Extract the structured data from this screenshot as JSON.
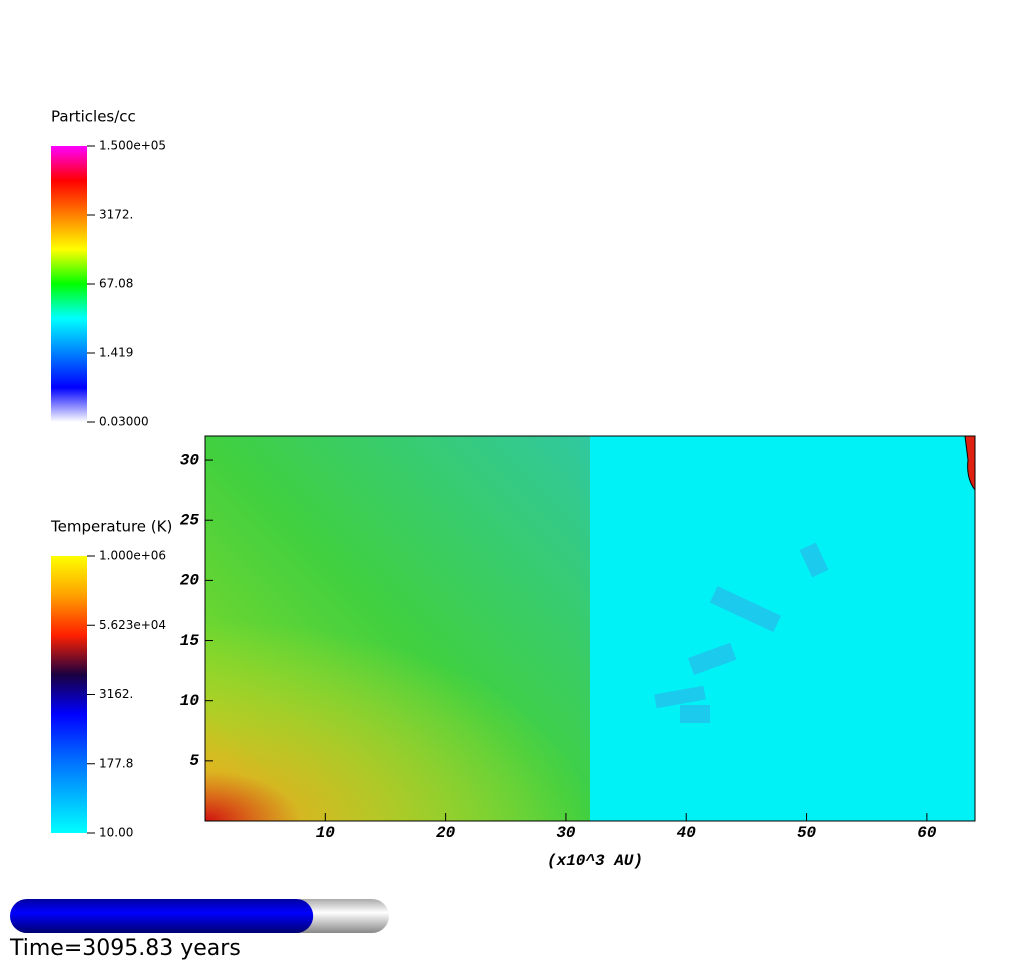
{
  "chart_data": {
    "type": "heatmap",
    "xlabel": "(x10^3 AU)",
    "xlim": [
      0,
      64
    ],
    "xticks": [
      10,
      20,
      30,
      40,
      50,
      60
    ],
    "ylim": [
      0,
      32
    ],
    "yticks": [
      5,
      10,
      15,
      20,
      25,
      30
    ],
    "colorbars": [
      {
        "title": "Particles/cc",
        "log": true,
        "lim": [
          0.03,
          150000
        ],
        "ticks": [
          {
            "value": 150000,
            "label": "1.500e+05"
          },
          {
            "value": 3172,
            "label": "3172."
          },
          67.08,
          1.419,
          {
            "value": 0.03,
            "label": "0.03000"
          }
        ],
        "colors": [
          "#ff00ff",
          "#ff0000",
          "#ff8000",
          "#ffff00",
          "#00ff00",
          "#00ffff",
          "#0080ff",
          "#0000ff",
          "#ffffff"
        ]
      },
      {
        "title": "Temperature (K)",
        "log": true,
        "lim": [
          10,
          1000000
        ],
        "ticks": [
          {
            "value": 1000000,
            "label": "1.000e+06"
          },
          {
            "value": 56230,
            "label": "5.623e+04"
          },
          {
            "value": 3162,
            "label": "3162."
          },
          177.8,
          {
            "value": 10,
            "label": "10.00"
          }
        ],
        "colors": [
          "#ffff00",
          "#ffa000",
          "#ff2000",
          "#1a0040",
          "#0000ff",
          "#0060ff",
          "#00b0ff",
          "#00ffff"
        ]
      }
    ],
    "progress": 0.8,
    "time_label": "Time=3095.83 years"
  }
}
